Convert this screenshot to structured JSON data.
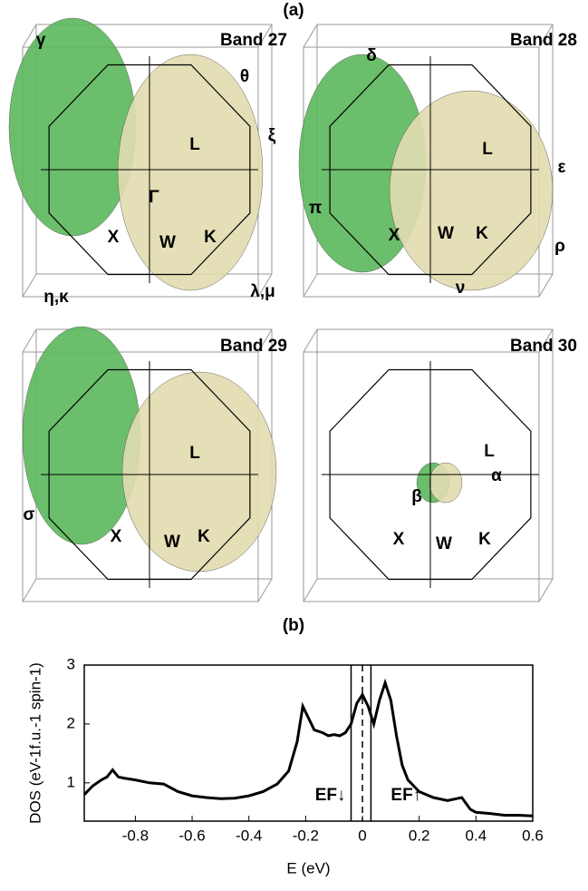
{
  "figure": {
    "label_a": "(a)",
    "label_b": "(b)",
    "panels": [
      {
        "title": "Band 27",
        "labels": [
          "γ",
          "θ",
          "ξ",
          "L",
          "Γ",
          "X",
          "W",
          "K",
          "η,κ",
          "λ,μ"
        ]
      },
      {
        "title": "Band 28",
        "labels": [
          "δ",
          "L",
          "ε",
          "π",
          "W",
          "K",
          "X",
          "ρ",
          "ν"
        ]
      },
      {
        "title": "Band 29",
        "labels": [
          "L",
          "σ",
          "X",
          "W",
          "K"
        ]
      },
      {
        "title": "Band 30",
        "labels": [
          "L",
          "α",
          "β",
          "X",
          "W",
          "K"
        ]
      }
    ]
  },
  "chart_data": {
    "type": "line",
    "x_label": "E (eV)",
    "y_label": "DOS (eV-1f.u.-1 spin-1)",
    "xlim": [
      -0.98,
      0.6
    ],
    "ylim": [
      0.35,
      3
    ],
    "xticks": [
      -0.8,
      -0.6,
      -0.4,
      -0.2,
      0,
      0.2,
      0.4,
      0.6
    ],
    "yticks": [
      1,
      2,
      3
    ],
    "x": [
      -0.98,
      -0.95,
      -0.92,
      -0.9,
      -0.88,
      -0.86,
      -0.84,
      -0.8,
      -0.75,
      -0.7,
      -0.65,
      -0.6,
      -0.55,
      -0.5,
      -0.45,
      -0.4,
      -0.35,
      -0.3,
      -0.26,
      -0.23,
      -0.21,
      -0.19,
      -0.17,
      -0.14,
      -0.12,
      -0.1,
      -0.08,
      -0.06,
      -0.04,
      -0.02,
      0.0,
      0.02,
      0.04,
      0.06,
      0.08,
      0.1,
      0.12,
      0.14,
      0.16,
      0.2,
      0.25,
      0.3,
      0.35,
      0.38,
      0.4,
      0.45,
      0.5,
      0.55,
      0.6
    ],
    "series": [
      {
        "color": "#000000",
        "values": [
          0.8,
          0.95,
          1.05,
          1.1,
          1.22,
          1.1,
          1.08,
          1.05,
          1.0,
          0.98,
          0.85,
          0.78,
          0.75,
          0.73,
          0.74,
          0.78,
          0.85,
          0.98,
          1.2,
          1.7,
          2.3,
          2.1,
          1.9,
          1.85,
          1.8,
          1.82,
          1.8,
          1.85,
          2.0,
          2.35,
          2.5,
          2.3,
          2.0,
          2.4,
          2.7,
          2.4,
          1.8,
          1.3,
          1.05,
          0.85,
          0.75,
          0.7,
          0.75,
          0.55,
          0.5,
          0.48,
          0.45,
          0.45,
          0.44
        ]
      }
    ],
    "annotations": [
      {
        "text": "EF↓",
        "x": -0.04,
        "style": "solid"
      },
      {
        "x": 0,
        "style": "dashed"
      },
      {
        "text": "EF↑",
        "x": 0.03,
        "style": "solid"
      }
    ]
  }
}
